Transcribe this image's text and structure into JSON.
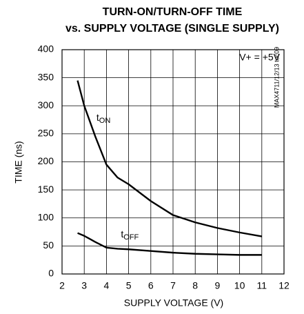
{
  "chart_data": {
    "type": "line",
    "title": [
      "TURN-ON/TURN-OFF TIME",
      "vs. SUPPLY VOLTAGE (SINGLE SUPPLY)"
    ],
    "x_label": "SUPPLY VOLTAGE (V)",
    "y_label": "TIME (ns)",
    "annotations": [
      "V+ = +5V",
      "MAX4711/12/13 toc09"
    ],
    "series": [
      {
        "name": "t",
        "name_sub": "ON",
        "color": "#000000",
        "x": [
          2.7,
          3,
          3.5,
          4,
          4.5,
          5,
          6,
          7,
          8,
          9,
          10,
          11
        ],
        "values": [
          345,
          300,
          245,
          195,
          172,
          160,
          130,
          105,
          92,
          82,
          74,
          67
        ]
      },
      {
        "name": "t",
        "name_sub": "OFF",
        "color": "#000000",
        "x": [
          2.7,
          3,
          3.5,
          4,
          4.5,
          5,
          6,
          7,
          8,
          9,
          10,
          11
        ],
        "values": [
          73,
          68,
          57,
          47,
          45,
          44,
          41,
          38,
          36,
          35,
          34,
          34
        ]
      }
    ],
    "xlim": [
      2,
      12
    ],
    "xticks": [
      2,
      3,
      4,
      5,
      6,
      7,
      8,
      9,
      10,
      11,
      12
    ],
    "ylim": [
      0,
      400
    ],
    "yticks": [
      0,
      50,
      100,
      150,
      200,
      250,
      300,
      350,
      400
    ],
    "grid": true
  }
}
